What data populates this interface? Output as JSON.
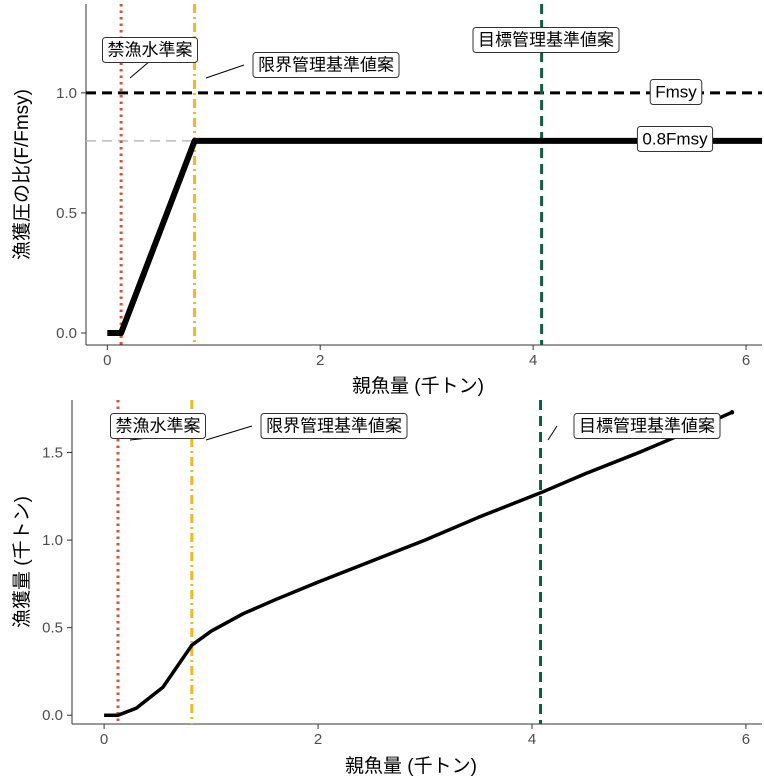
{
  "chart_data": [
    {
      "type": "line",
      "title": "",
      "xlabel": "親魚量 (千トン)",
      "ylabel": "漁獲圧の比(F/Fmsy)",
      "xlim": [
        -0.2,
        6.15
      ],
      "ylim": [
        -0.05,
        1.37
      ],
      "xticks": [
        0,
        2,
        4,
        6
      ],
      "yticks": [
        0.0,
        0.5,
        1.0
      ],
      "ytick_labels": [
        "0.0",
        "0.5",
        "1.0"
      ],
      "grid": false,
      "series": [
        {
          "name": "",
          "x": [
            0,
            0.13,
            0.82,
            6.15
          ],
          "y": [
            0,
            0,
            0.8,
            0.8
          ],
          "color": "#000000"
        }
      ],
      "hlines": [
        {
          "y": 1.0,
          "style": "dashed",
          "color": "#000000",
          "label": "Fmsy"
        },
        {
          "y": 0.8,
          "style": "dashed",
          "color": "#bbbbbb",
          "label": "0.8Fmsy"
        }
      ],
      "vlines": [
        {
          "x": 0.13,
          "style": "dotted",
          "color": "#d94f3b",
          "label": "禁漁水準案"
        },
        {
          "x": 0.82,
          "style": "dashdot",
          "color": "#f0b924",
          "label": "限界管理基準値案"
        },
        {
          "x": 4.08,
          "style": "dashed",
          "color": "#0d5c44",
          "label": "目標管理基準値案"
        }
      ]
    },
    {
      "type": "line",
      "title": "",
      "xlabel": "親魚量 (千トン)",
      "ylabel": "漁獲量 (千トン)",
      "xlim": [
        -0.3,
        6.15
      ],
      "ylim": [
        -0.05,
        1.8
      ],
      "xticks": [
        0,
        2,
        4,
        6
      ],
      "yticks": [
        0.0,
        0.5,
        1.0,
        1.5
      ],
      "ytick_labels": [
        "0.0",
        "0.5",
        "1.0",
        "1.5"
      ],
      "grid": false,
      "series": [
        {
          "name": "",
          "x": [
            0,
            0.13,
            0.3,
            0.55,
            0.82,
            1.0,
            1.3,
            1.6,
            2.0,
            2.5,
            3.0,
            3.5,
            4.08,
            4.5,
            5.0,
            5.5,
            5.87
          ],
          "y": [
            0,
            0,
            0.04,
            0.16,
            0.4,
            0.48,
            0.58,
            0.66,
            0.76,
            0.88,
            1.0,
            1.13,
            1.27,
            1.38,
            1.5,
            1.63,
            1.73
          ],
          "color": "#000000"
        }
      ],
      "vlines": [
        {
          "x": 0.13,
          "style": "dotted",
          "color": "#d94f3b",
          "label": "禁漁水準案"
        },
        {
          "x": 0.82,
          "style": "dashdot",
          "color": "#f0b924",
          "label": "限界管理基準値案"
        },
        {
          "x": 4.08,
          "style": "dashed",
          "color": "#0d5c44",
          "label": "目標管理基準値案"
        }
      ]
    }
  ]
}
